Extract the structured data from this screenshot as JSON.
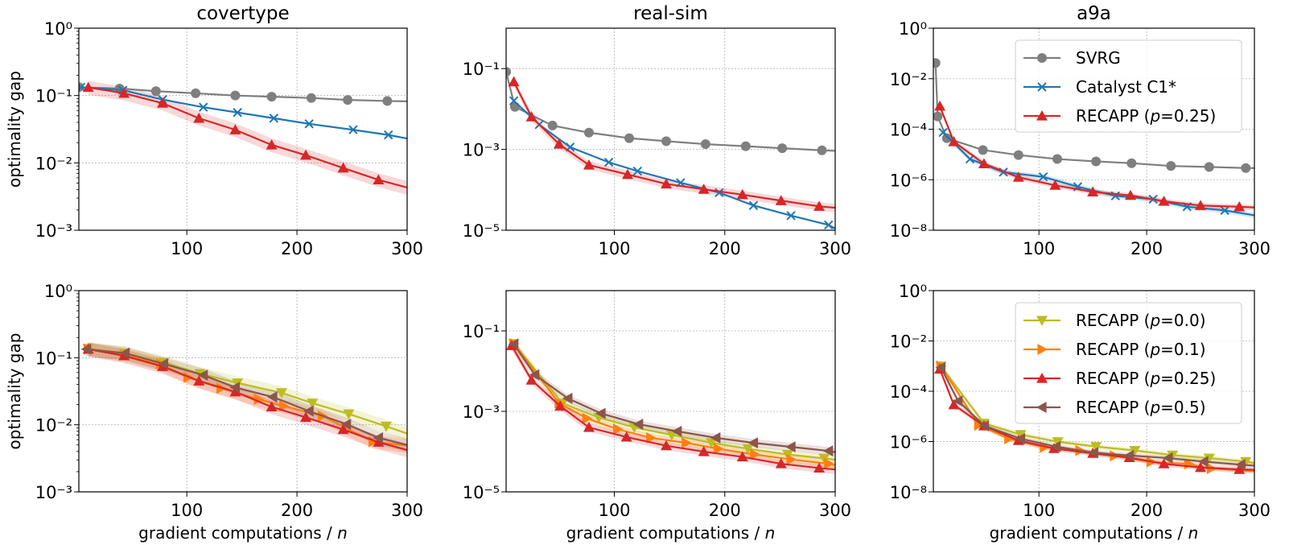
{
  "chart_data": [
    {
      "type": "line",
      "title": "covertype",
      "xlabel": "",
      "ylabel": "optimality gap",
      "xlim": [
        2,
        300
      ],
      "ylim": [
        0.001,
        1
      ],
      "yscale": "log",
      "grid": true,
      "xticks": [
        100,
        200,
        300
      ],
      "xtick_labels": [
        "100",
        "200",
        "300"
      ],
      "yticks": [
        1,
        0.1,
        0.01,
        0.001
      ],
      "ytick_labels": [
        "10⁰",
        "10⁻¹",
        "10⁻²",
        "10⁻³"
      ],
      "minor_ticks": true,
      "legend": null,
      "series": [
        {
          "name": "SVRG",
          "color": "#7f7f7f",
          "marker": "circle",
          "band": false,
          "x": [
            2,
            39,
            72,
            108,
            144,
            177,
            213,
            246,
            282,
            300
          ],
          "y": [
            0.133,
            0.127,
            0.116,
            0.108,
            0.1,
            0.096,
            0.092,
            0.086,
            0.083,
            0.082
          ]
        },
        {
          "name": "Catalyst C1*",
          "color": "#1f77b4",
          "marker": "x",
          "band": false,
          "x": [
            4,
            42,
            78,
            115,
            146,
            179,
            211,
            251,
            283,
            300
          ],
          "y": [
            0.133,
            0.12,
            0.087,
            0.067,
            0.056,
            0.046,
            0.038,
            0.031,
            0.026,
            0.023
          ]
        },
        {
          "name": "RECAPP (p=0.25)",
          "color": "#d62728",
          "marker": "triangle-up",
          "band": true,
          "x": [
            10.5,
            43,
            78,
            111,
            144,
            177,
            208,
            242,
            274,
            300
          ],
          "y": [
            0.132,
            0.108,
            0.077,
            0.046,
            0.031,
            0.0185,
            0.013,
            0.0084,
            0.0056,
            0.0043
          ]
        }
      ]
    },
    {
      "type": "line",
      "title": "real-sim",
      "xlabel": "",
      "ylabel": "",
      "xlim": [
        2,
        300
      ],
      "ylim": [
        1e-05,
        1
      ],
      "yscale": "log",
      "grid": true,
      "xticks": [
        100,
        200,
        300
      ],
      "xtick_labels": [
        "100",
        "200",
        "300"
      ],
      "yticks": [
        0.1,
        0.001,
        1e-05
      ],
      "ytick_labels": [
        "10⁻¹",
        "10⁻³",
        "10⁻⁵"
      ],
      "minor_ticks": false,
      "legend": null,
      "series": [
        {
          "name": "SVRG",
          "color": "#7f7f7f",
          "marker": "circle",
          "band": false,
          "x": [
            2,
            10,
            44,
            77,
            113.5,
            147,
            182.6,
            219,
            252,
            288,
            300
          ],
          "y": [
            0.083,
            0.0113,
            0.0039,
            0.0026,
            0.0019,
            0.0016,
            0.00135,
            0.0012,
            0.00107,
            0.00095,
            0.00092
          ]
        },
        {
          "name": "Catalyst C1*",
          "color": "#1f77b4",
          "marker": "x",
          "band": false,
          "x": [
            9,
            32,
            60,
            95,
            121,
            160,
            195,
            226,
            260,
            294,
            300
          ],
          "y": [
            0.016,
            0.0041,
            0.00114,
            0.00048,
            0.00029,
            0.00015,
            8.5e-05,
            4.1e-05,
            2.3e-05,
            1.35e-05,
            1.1e-05
          ]
        },
        {
          "name": "RECAPP (p=0.25)",
          "color": "#d62728",
          "marker": "triangle-up",
          "band": true,
          "x": [
            9,
            25,
            50,
            77,
            112,
            147,
            181,
            216,
            251,
            285.5,
            300
          ],
          "y": [
            0.047,
            0.0064,
            0.00135,
            0.00041,
            0.00024,
            0.00014,
            0.000103,
            7.6e-05,
            5.4e-05,
            3.9e-05,
            3.6e-05
          ]
        }
      ]
    },
    {
      "type": "line",
      "title": "a9a",
      "xlabel": "",
      "ylabel": "",
      "xlim": [
        2,
        300
      ],
      "ylim": [
        1e-08,
        1
      ],
      "yscale": "log",
      "grid": true,
      "xticks": [
        100,
        200,
        300
      ],
      "xtick_labels": [
        "100",
        "200",
        "300"
      ],
      "yticks": [
        1,
        0.01,
        0.0001,
        1e-06,
        1e-08
      ],
      "ytick_labels": [
        "10⁰",
        "10⁻²",
        "10⁻⁴",
        "10⁻⁶",
        "10⁻⁸"
      ],
      "minor_ticks": false,
      "legend": "upper right",
      "series": [
        {
          "name": "SVRG",
          "color": "#7f7f7f",
          "marker": "circle",
          "band": false,
          "x": [
            4,
            6,
            14.5,
            48,
            81,
            117,
            153,
            186,
            222.5,
            258,
            292,
            300
          ],
          "y": [
            0.042,
            0.00032,
            4.4e-05,
            1.5e-05,
            9.5e-06,
            6.6e-06,
            5.3e-06,
            4.5e-06,
            3.5e-06,
            3.2e-06,
            2.9e-06,
            2.9e-06
          ]
        },
        {
          "name": "Catalyst C1*",
          "color": "#1f77b4",
          "marker": "x",
          "band": true,
          "x": [
            11,
            36,
            67,
            104,
            136,
            171,
            206,
            237.5,
            272.5,
            300
          ],
          "y": [
            7.4e-05,
            6.6e-06,
            2e-06,
            1.3e-06,
            5.3e-07,
            2.3e-07,
            1.7e-07,
            8.5e-08,
            6.1e-08,
            3.9e-08
          ]
        },
        {
          "name": "RECAPP (p=0.25)",
          "color": "#d62728",
          "marker": "triangle-up",
          "band": true,
          "x": [
            8,
            21,
            49,
            81,
            115,
            150,
            185,
            216,
            250,
            286,
            300
          ],
          "y": [
            0.00082,
            3.2e-05,
            4.3e-06,
            1.25e-06,
            6e-07,
            3.3e-07,
            2.4e-07,
            1.4e-07,
            9.5e-08,
            8.5e-08,
            8e-08
          ]
        }
      ]
    },
    {
      "type": "line",
      "title": "",
      "xlabel": "gradient computations / n",
      "ylabel": "optimality gap",
      "xlim": [
        2,
        300
      ],
      "ylim": [
        0.001,
        1
      ],
      "yscale": "log",
      "grid": true,
      "xticks": [
        100,
        200,
        300
      ],
      "xtick_labels": [
        "100",
        "200",
        "300"
      ],
      "yticks": [
        1,
        0.1,
        0.01,
        0.001
      ],
      "ytick_labels": [
        "10⁰",
        "10⁻¹",
        "10⁻²",
        "10⁻³"
      ],
      "minor_ticks": true,
      "legend": null,
      "series": [
        {
          "name": "RECAPP (p=0.0)",
          "color": "#bcbd22",
          "marker": "triangle-down",
          "band": true,
          "x": [
            10.5,
            44,
            79,
            112,
            146,
            186,
            214,
            247,
            281,
            300
          ],
          "y": [
            0.137,
            0.117,
            0.085,
            0.058,
            0.042,
            0.03,
            0.021,
            0.0145,
            0.0095,
            0.0074
          ]
        },
        {
          "name": "RECAPP (p=0.1)",
          "color": "#ff7f0e",
          "marker": "triangle-right",
          "band": true,
          "x": [
            10.5,
            43,
            76,
            101,
            131,
            165,
            188,
            223,
            269,
            300
          ],
          "y": [
            0.135,
            0.11,
            0.081,
            0.051,
            0.035,
            0.024,
            0.019,
            0.0135,
            0.0056,
            0.0049
          ]
        },
        {
          "name": "RECAPP (p=0.25)",
          "color": "#d62728",
          "marker": "triangle-up",
          "band": true,
          "x": [
            10.5,
            43,
            78,
            111,
            144,
            177,
            208,
            242,
            274,
            300
          ],
          "y": [
            0.134,
            0.107,
            0.074,
            0.045,
            0.031,
            0.0185,
            0.0129,
            0.0085,
            0.0055,
            0.0042
          ]
        },
        {
          "name": "RECAPP (p=0.5)",
          "color": "#8c564b",
          "marker": "triangle-left",
          "band": true,
          "x": [
            9,
            44,
            79,
            115,
            144,
            178,
            211,
            245,
            274,
            300
          ],
          "y": [
            0.134,
            0.117,
            0.081,
            0.055,
            0.036,
            0.026,
            0.016,
            0.0102,
            0.0064,
            0.005
          ]
        }
      ]
    },
    {
      "type": "line",
      "title": "",
      "xlabel": "gradient computations / n",
      "ylabel": "",
      "xlim": [
        2,
        300
      ],
      "ylim": [
        1e-05,
        1
      ],
      "yscale": "log",
      "grid": true,
      "xticks": [
        100,
        200,
        300
      ],
      "xtick_labels": [
        "100",
        "200",
        "300"
      ],
      "yticks": [
        0.1,
        0.001,
        1e-05
      ],
      "ytick_labels": [
        "10⁻¹",
        "10⁻³",
        "10⁻⁵"
      ],
      "minor_ticks": false,
      "legend": null,
      "series": [
        {
          "name": "RECAPP (p=0.0)",
          "color": "#bcbd22",
          "marker": "triangle-down",
          "band": true,
          "x": [
            9,
            53,
            86,
            118,
            152,
            188,
            221,
            257,
            290,
            300
          ],
          "y": [
            0.048,
            0.0016,
            0.0007,
            0.0004,
            0.00026,
            0.000166,
            0.000118,
            8.5e-05,
            6.8e-05,
            6.3e-05
          ]
        },
        {
          "name": "RECAPP (p=0.1)",
          "color": "#ff7f0e",
          "marker": "triangle-right",
          "band": true,
          "x": [
            9,
            50,
            75,
            103,
            133,
            165,
            194,
            227,
            260,
            294,
            300
          ],
          "y": [
            0.048,
            0.0016,
            0.00067,
            0.00036,
            0.00022,
            0.000165,
            0.000118,
            8.5e-05,
            6.4e-05,
            5e-05,
            4.6e-05
          ]
        },
        {
          "name": "RECAPP (p=0.25)",
          "color": "#d62728",
          "marker": "triangle-up",
          "band": true,
          "x": [
            7,
            25,
            51,
            77,
            111,
            147,
            181,
            216,
            251,
            285.5,
            300
          ],
          "y": [
            0.043,
            0.006,
            0.00135,
            0.0004,
            0.00023,
            0.00014,
            0.0001,
            7.4e-05,
            5e-05,
            3.9e-05,
            3.6e-05
          ]
        },
        {
          "name": "RECAPP (p=0.5)",
          "color": "#8c564b",
          "marker": "triangle-left",
          "band": true,
          "x": [
            9,
            28,
            58,
            88,
            122,
            157,
            192,
            226,
            260,
            294,
            300
          ],
          "y": [
            0.047,
            0.0081,
            0.0021,
            0.00089,
            0.00048,
            0.00032,
            0.00022,
            0.000165,
            0.000131,
            0.000104,
            9.7e-05
          ]
        }
      ]
    },
    {
      "type": "line",
      "title": "",
      "xlabel": "gradient computations / n",
      "ylabel": "",
      "xlim": [
        2,
        300
      ],
      "ylim": [
        1e-08,
        1
      ],
      "yscale": "log",
      "grid": true,
      "xticks": [
        100,
        200,
        300
      ],
      "xtick_labels": [
        "100",
        "200",
        "300"
      ],
      "yticks": [
        1,
        0.01,
        0.0001,
        1e-06,
        1e-08
      ],
      "ytick_labels": [
        "10⁰",
        "10⁻²",
        "10⁻⁴",
        "10⁻⁶",
        "10⁻⁸"
      ],
      "minor_ticks": false,
      "legend": "upper right",
      "series": [
        {
          "name": "RECAPP (p=0.0)",
          "color": "#bcbd22",
          "marker": "triangle-down",
          "band": true,
          "x": [
            9,
            49,
            83,
            117.5,
            153,
            189,
            224,
            258,
            292,
            300
          ],
          "y": [
            0.001,
            5.3e-06,
            1.9e-06,
            9.8e-07,
            6.3e-07,
            4.4e-07,
            2.9e-07,
            2.2e-07,
            1.6e-07,
            1.4e-07
          ]
        },
        {
          "name": "RECAPP (p=0.1)",
          "color": "#ff7f0e",
          "marker": "triangle-right",
          "band": true,
          "x": [
            9,
            44,
            72,
            105,
            138,
            170,
            204,
            239,
            260,
            300
          ],
          "y": [
            0.001,
            4.5e-06,
            1.3e-06,
            5.9e-07,
            4.4e-07,
            2.7e-07,
            1.55e-07,
            1.3e-07,
            8.5e-08,
            6.6e-08
          ]
        },
        {
          "name": "RECAPP (p=0.25)",
          "color": "#d62728",
          "marker": "triangle-up",
          "band": true,
          "x": [
            8,
            21,
            49,
            81,
            114,
            150,
            184,
            216,
            250,
            286,
            300
          ],
          "y": [
            0.00076,
            2.9e-05,
            4.2e-06,
            1.1e-06,
            5.3e-07,
            3.4e-07,
            2.3e-07,
            1.3e-07,
            9.3e-08,
            7.8e-08,
            7.5e-08
          ]
        },
        {
          "name": "RECAPP (p=0.5)",
          "color": "#8c564b",
          "marker": "triangle-left",
          "band": true,
          "x": [
            9,
            25,
            49.5,
            83,
            116,
            151,
            184,
            220,
            253,
            287.5,
            300
          ],
          "y": [
            0.00087,
            4.1e-05,
            4.2e-06,
            1.3e-06,
            6.3e-07,
            3.6e-07,
            2.8e-07,
            2.2e-07,
            1.6e-07,
            1.2e-07,
            1.1e-07
          ]
        }
      ]
    }
  ]
}
